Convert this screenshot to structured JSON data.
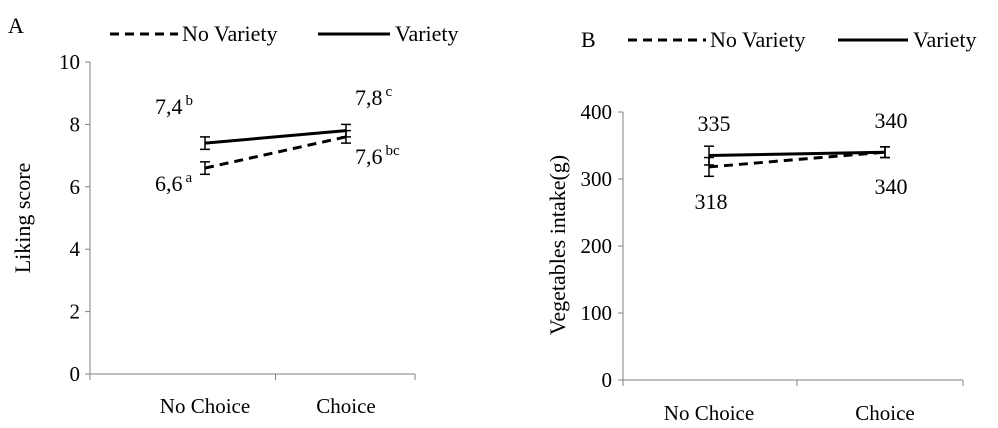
{
  "chart_data": [
    {
      "type": "line",
      "panel_label": "A",
      "categories": [
        "No Choice",
        "Choice"
      ],
      "ylabel": "Liking score",
      "xlabel": "",
      "ylim": [
        0,
        10
      ],
      "yticks": [
        0,
        2,
        4,
        6,
        8,
        10
      ],
      "legend": {
        "placement": "top",
        "entries": [
          "No Variety",
          "Variety"
        ]
      },
      "series": [
        {
          "name": "No Variety",
          "style": "dashed",
          "values": [
            6.6,
            7.6
          ],
          "errors": [
            0.2,
            0.2
          ],
          "annotations": [
            {
              "text": "6,6",
              "sup": "a"
            },
            {
              "text": "7,6",
              "sup": "bc"
            }
          ]
        },
        {
          "name": "Variety",
          "style": "solid",
          "values": [
            7.4,
            7.8
          ],
          "errors": [
            0.2,
            0.2
          ],
          "annotations": [
            {
              "text": "7,4",
              "sup": "b"
            },
            {
              "text": "7,8",
              "sup": "c"
            }
          ]
        }
      ]
    },
    {
      "type": "line",
      "panel_label": "B",
      "categories": [
        "No Choice",
        "Choice"
      ],
      "ylabel": "Vegetables intake(g)",
      "xlabel": "",
      "ylim": [
        0,
        400
      ],
      "yticks": [
        0,
        100,
        200,
        300,
        400
      ],
      "legend": {
        "placement": "top",
        "entries": [
          "No Variety",
          "Variety"
        ]
      },
      "series": [
        {
          "name": "No Variety",
          "style": "dashed",
          "values": [
            318,
            340
          ],
          "errors": [
            14,
            8
          ],
          "annotations": [
            {
              "text": "318",
              "sup": ""
            },
            {
              "text": "340",
              "sup": ""
            }
          ]
        },
        {
          "name": "Variety",
          "style": "solid",
          "values": [
            335,
            340
          ],
          "errors": [
            14,
            8
          ],
          "annotations": [
            {
              "text": "335",
              "sup": ""
            },
            {
              "text": "340",
              "sup": ""
            }
          ]
        }
      ]
    }
  ]
}
